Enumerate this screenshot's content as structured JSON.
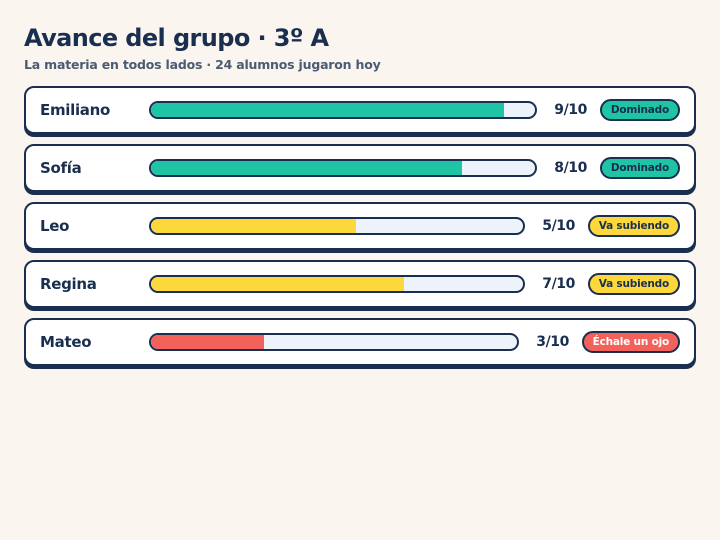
{
  "header": {
    "title": "Avance del grupo · 3º A",
    "subtitle": "La materia en todos lados · 24 alumnos jugaron hoy"
  },
  "colors": {
    "mastered": "#1fc4a4",
    "rising": "#fdd83d",
    "watch": "#f2625a",
    "ink": "#1a2e4f",
    "track": "#ecf3fa"
  },
  "students": [
    {
      "name": "Emiliano",
      "score": "9/10",
      "progress": 0.92,
      "status": "Dominado",
      "level": "mastered"
    },
    {
      "name": "Sofía",
      "score": "8/10",
      "progress": 0.81,
      "status": "Dominado",
      "level": "mastered"
    },
    {
      "name": "Leo",
      "score": "5/10",
      "progress": 0.55,
      "status": "Va subiendo",
      "level": "rising"
    },
    {
      "name": "Regina",
      "score": "7/10",
      "progress": 0.68,
      "status": "Va subiendo",
      "level": "rising"
    },
    {
      "name": "Mateo",
      "score": "3/10",
      "progress": 0.31,
      "status": "Échale un ojo",
      "level": "watch"
    }
  ]
}
